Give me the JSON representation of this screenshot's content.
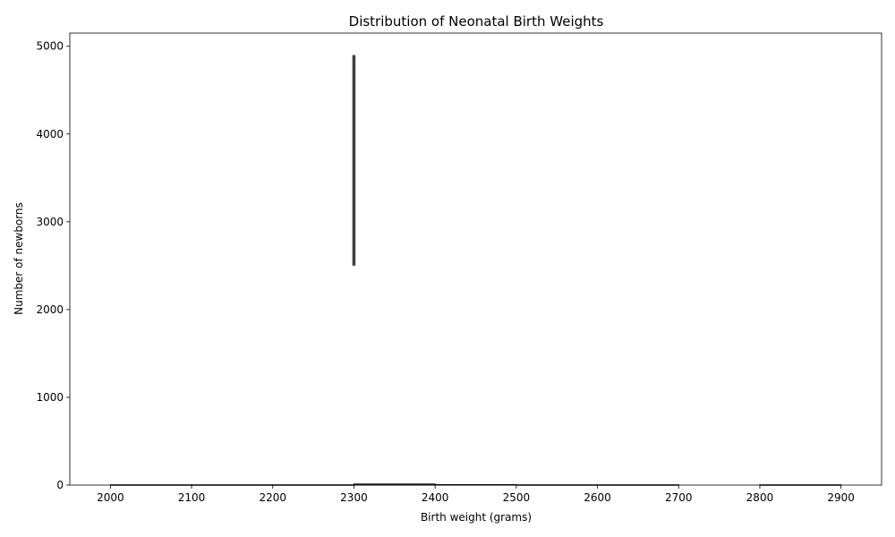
{
  "chart_data": {
    "type": "bar",
    "title": "Distribution of Neonatal Birth Weights",
    "xlabel": "Birth weight (grams)",
    "ylabel": "Number of newborns",
    "xlim": [
      1950,
      2950
    ],
    "ylim": [
      0,
      5150
    ],
    "x_ticks": [
      2000,
      2100,
      2200,
      2300,
      2400,
      2500,
      2600,
      2700,
      2800,
      2900
    ],
    "y_ticks": [
      0,
      1000,
      2000,
      3000,
      4000,
      5000
    ],
    "bins": [
      {
        "start": 2000,
        "end": 2100,
        "value": 3
      },
      {
        "start": 2100,
        "end": 2200,
        "value": 3
      },
      {
        "start": 2200,
        "end": 2300,
        "value": 3
      },
      {
        "start": 2300,
        "end": 2400,
        "value": 12
      },
      {
        "start": 2400,
        "end": 2500,
        "value": 5
      },
      {
        "start": 2500,
        "end": 2600,
        "value": 3
      },
      {
        "start": 2600,
        "end": 2700,
        "value": 3
      },
      {
        "start": 2800,
        "end": 2900,
        "value": 3
      }
    ],
    "error_bar": {
      "x": 2300,
      "low": 2500,
      "high": 4900
    },
    "bar_color": "#4c72b0",
    "grid": false
  }
}
